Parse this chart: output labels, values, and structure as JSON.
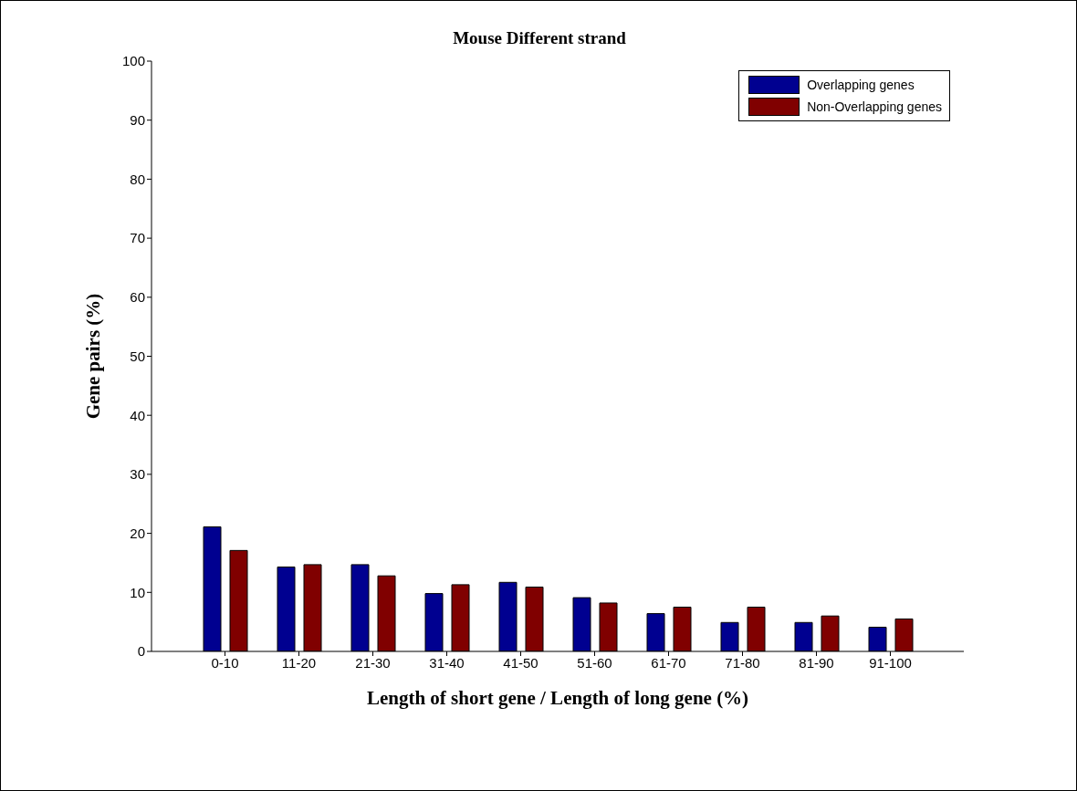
{
  "chart_data": {
    "type": "bar",
    "title": "Mouse Different strand",
    "xlabel": "Length of short gene / Length of long gene (%)",
    "ylabel": "Gene pairs (%)",
    "categories": [
      "0-10",
      "11-20",
      "21-30",
      "31-40",
      "41-50",
      "51-60",
      "61-70",
      "71-80",
      "81-90",
      "91-100"
    ],
    "series": [
      {
        "name": "Overlapping genes",
        "color": "#000090",
        "values": [
          21.1,
          14.3,
          14.7,
          9.8,
          11.7,
          9.1,
          6.4,
          4.9,
          4.9,
          4.1
        ]
      },
      {
        "name": "Non-Overlapping genes",
        "color": "#800000",
        "values": [
          17.1,
          14.7,
          12.8,
          11.3,
          10.9,
          8.2,
          7.5,
          7.5,
          6.0,
          5.5
        ]
      }
    ],
    "ylim": [
      0,
      100
    ],
    "yticks": [
      0,
      10,
      20,
      30,
      40,
      50,
      60,
      70,
      80,
      90,
      100
    ],
    "grid": false,
    "legend": "top right"
  }
}
